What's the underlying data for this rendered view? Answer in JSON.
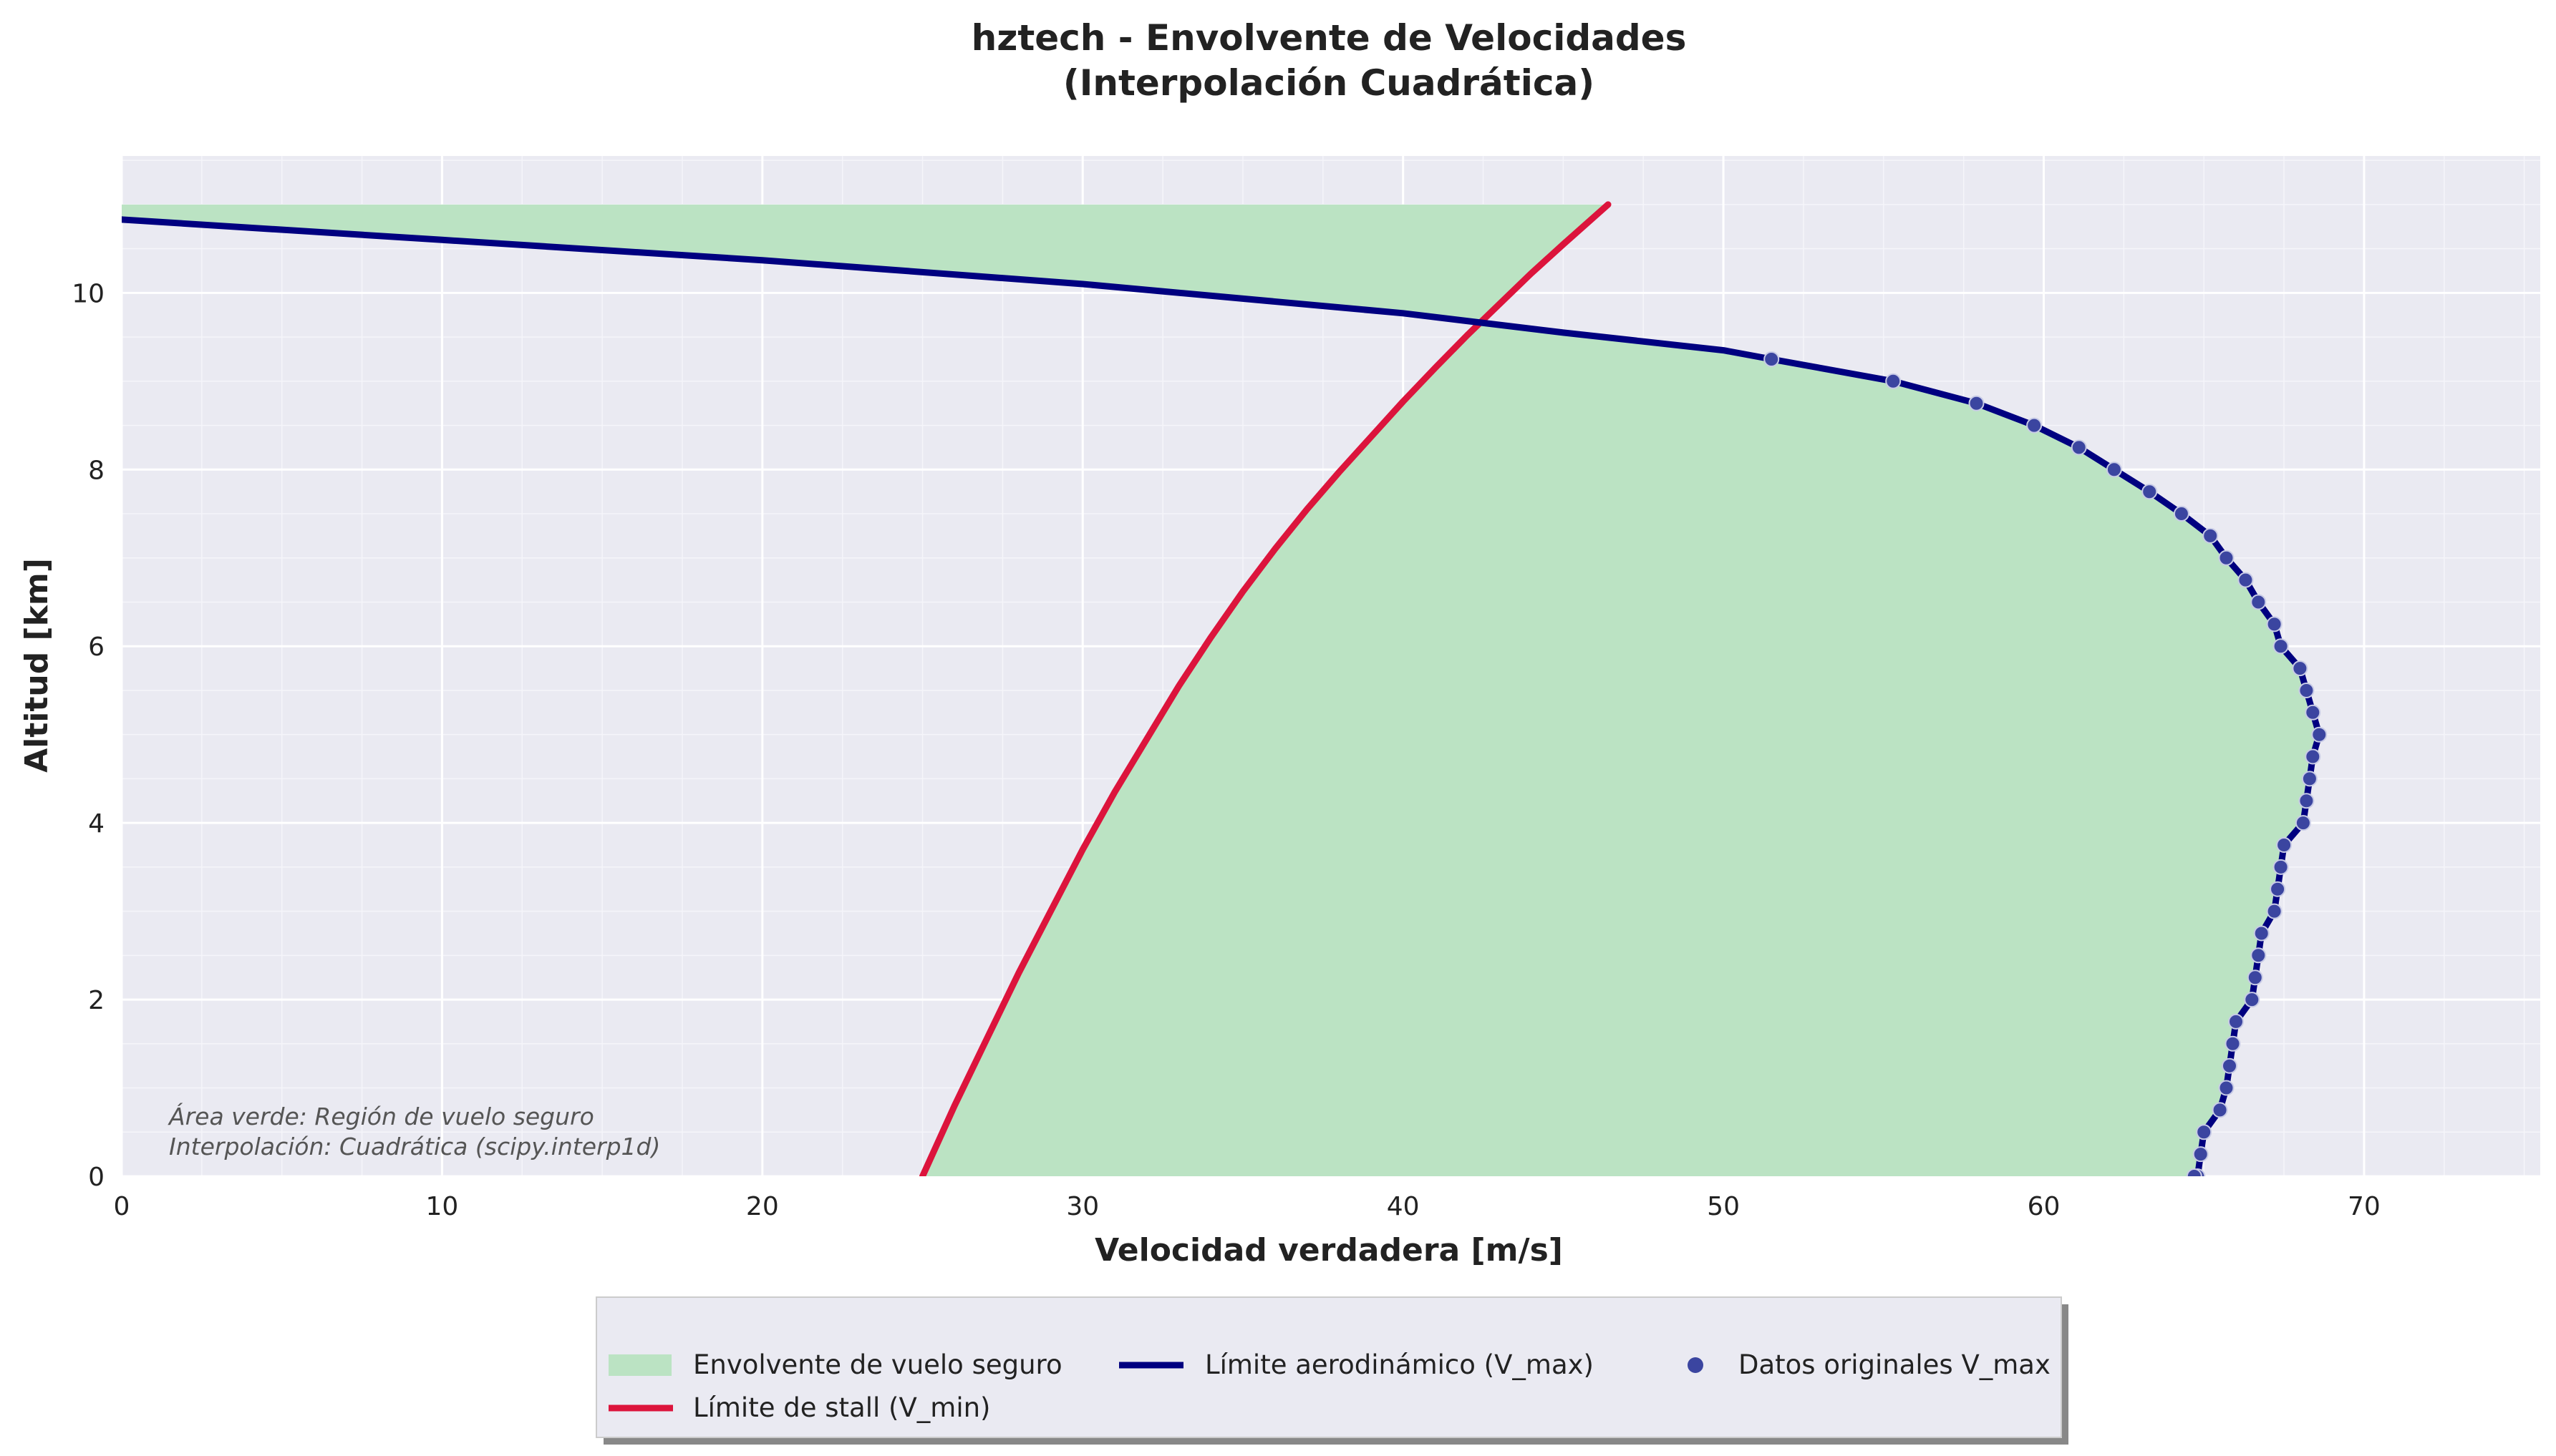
{
  "chart_data": {
    "type": "line",
    "title": "hztech - Envolvente de Velocidades",
    "subtitle": "(Interpolación Cuadrática)",
    "xlabel": "Velocidad verdadera [m/s]",
    "ylabel": "Altitud [km]",
    "xlim": [
      0,
      75.5
    ],
    "ylim": [
      0,
      11.55
    ],
    "xticks": [
      0,
      10,
      20,
      30,
      40,
      50,
      60,
      70
    ],
    "yticks": [
      0,
      2,
      4,
      6,
      8,
      10
    ],
    "grid": true,
    "legend_position": "bottom-center",
    "annotations": [
      "Área verde: Región de vuelo seguro",
      "Interpolación: Cuadrática (scipy.interp1d)"
    ],
    "colors": {
      "envelope_fill": "#bbe3c3",
      "vmax_line": "#000080",
      "vmin_line": "#dc143c",
      "data_points": "#3b45a0",
      "plot_background": "#eaeaf2"
    },
    "legend": [
      "Envolvente de vuelo seguro",
      "Límite aerodinámico (V_max)",
      "Datos originales V_max",
      "Límite de stall (V_min)"
    ],
    "series": [
      {
        "name": "Límite de stall (V_min)",
        "x": [
          25.0,
          26.0,
          27.0,
          28.0,
          29.0,
          30.0,
          31.0,
          32.0,
          33.0,
          34.0,
          35.0,
          36.0,
          37.0,
          38.0,
          39.0,
          40.0,
          41.0,
          42.0,
          43.0,
          44.0,
          45.0,
          46.4
        ],
        "y": [
          0.0,
          0.8,
          1.55,
          2.3,
          3.0,
          3.7,
          4.35,
          4.95,
          5.55,
          6.1,
          6.62,
          7.1,
          7.55,
          7.97,
          8.37,
          8.77,
          9.15,
          9.52,
          9.87,
          10.22,
          10.55,
          11.0
        ]
      },
      {
        "name": "Límite aerodinámico (V_max)",
        "x": [
          0,
          10,
          20,
          30,
          40,
          45,
          50,
          51.5,
          55.3,
          57.9,
          59.7,
          61.1,
          62.2,
          63.3,
          64.3,
          65.2,
          65.7,
          66.3,
          66.7,
          67.2,
          67.4,
          68.0,
          68.2,
          68.4,
          68.6,
          68.4,
          68.3,
          68.2,
          68.1,
          67.5,
          67.4,
          67.3,
          67.2,
          66.8,
          66.7,
          66.6,
          66.5,
          66.0,
          65.9,
          65.8,
          65.7,
          65.5,
          65.0,
          64.9,
          64.8,
          64.7
        ],
        "y": [
          10.83,
          10.6,
          10.37,
          10.1,
          9.77,
          9.55,
          9.35,
          9.25,
          9.0,
          8.75,
          8.5,
          8.25,
          8.0,
          7.75,
          7.5,
          7.25,
          7.0,
          6.75,
          6.5,
          6.25,
          6.0,
          5.75,
          5.5,
          5.25,
          5.0,
          4.75,
          4.5,
          4.25,
          4.0,
          3.75,
          3.5,
          3.25,
          3.0,
          2.75,
          2.5,
          2.25,
          2.0,
          1.75,
          1.5,
          1.25,
          1.0,
          0.75,
          0.5,
          0.25,
          0.0,
          0.0
        ]
      },
      {
        "name": "Datos originales V_max",
        "x": [
          51.5,
          55.3,
          57.9,
          59.7,
          61.1,
          62.2,
          63.3,
          64.3,
          65.2,
          65.7,
          66.3,
          66.7,
          67.2,
          67.4,
          68.0,
          68.2,
          68.4,
          68.6,
          68.4,
          68.3,
          68.2,
          68.1,
          67.5,
          67.4,
          67.3,
          67.2,
          66.8,
          66.7,
          66.6,
          66.5,
          66.0,
          65.9,
          65.8,
          65.7,
          65.5,
          65.0,
          64.9,
          64.8,
          64.7
        ],
        "y": [
          9.25,
          9.0,
          8.75,
          8.5,
          8.25,
          8.0,
          7.75,
          7.5,
          7.25,
          7.0,
          6.75,
          6.5,
          6.25,
          6.0,
          5.75,
          5.5,
          5.25,
          5.0,
          4.75,
          4.5,
          4.25,
          4.0,
          3.75,
          3.5,
          3.25,
          3.0,
          2.75,
          2.5,
          2.25,
          2.0,
          1.75,
          1.5,
          1.25,
          1.0,
          0.75,
          0.5,
          0.25,
          0.0,
          0.0
        ]
      },
      {
        "name": "Envolvente de vuelo seguro",
        "top_altitude": 11.0
      }
    ]
  }
}
